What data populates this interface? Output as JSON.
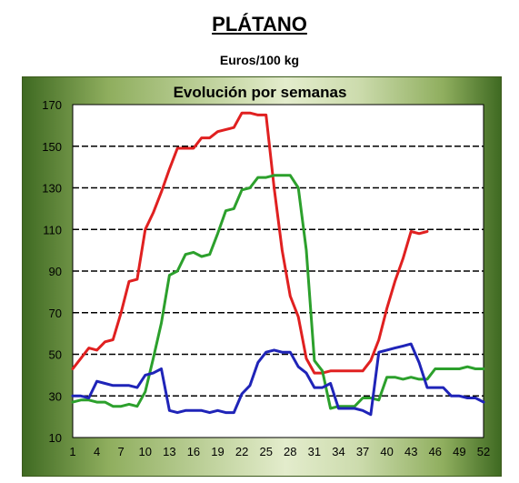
{
  "header": {
    "title": "PLÁTANO",
    "subtitle": "Euros/100 kg"
  },
  "chart_data": {
    "type": "line",
    "title": "Evolución por semanas",
    "xlabel": "",
    "ylabel": "",
    "xlim": [
      1,
      52
    ],
    "ylim": [
      10,
      170
    ],
    "x_ticks": [
      1,
      4,
      7,
      10,
      13,
      16,
      19,
      22,
      25,
      28,
      31,
      34,
      37,
      40,
      43,
      46,
      49,
      52
    ],
    "y_ticks": [
      10,
      30,
      50,
      70,
      90,
      110,
      130,
      150,
      170
    ],
    "grid": "horizontal dashed",
    "legend": "none",
    "series": [
      {
        "color": "#e02020",
        "x": [
          1,
          2,
          3,
          4,
          5,
          6,
          7,
          8,
          9,
          10,
          11,
          12,
          13,
          14,
          15,
          16,
          17,
          18,
          19,
          20,
          21,
          22,
          23,
          24,
          25,
          26,
          27,
          28,
          29,
          30,
          31,
          32,
          33,
          34,
          35,
          36,
          37,
          38,
          39,
          40,
          41,
          42,
          43,
          44,
          45
        ],
        "values": [
          43,
          48,
          53,
          52,
          56,
          57,
          70,
          85,
          86,
          110,
          118,
          128,
          139,
          149,
          149,
          149,
          154,
          154,
          157,
          158,
          159,
          166,
          166,
          165,
          165,
          130,
          100,
          78,
          68,
          48,
          41,
          41,
          42,
          42,
          42,
          42,
          42,
          47,
          57,
          72,
          85,
          96,
          109,
          108,
          109
        ]
      },
      {
        "color": "#2ca02c",
        "x": [
          1,
          2,
          3,
          4,
          5,
          6,
          7,
          8,
          9,
          10,
          11,
          12,
          13,
          14,
          15,
          16,
          17,
          18,
          19,
          20,
          21,
          22,
          23,
          24,
          25,
          26,
          27,
          28,
          29,
          30,
          31,
          32,
          33,
          34,
          35,
          36,
          37,
          38,
          39,
          40,
          41,
          42,
          43,
          44,
          45,
          46,
          47,
          48,
          49,
          50,
          51,
          52
        ],
        "values": [
          27,
          28,
          28,
          27,
          27,
          25,
          25,
          26,
          25,
          32,
          48,
          65,
          88,
          90,
          98,
          99,
          97,
          98,
          108,
          119,
          120,
          129,
          130,
          135,
          135,
          136,
          136,
          136,
          130,
          100,
          47,
          42,
          24,
          25,
          25,
          25,
          29,
          29,
          28,
          39,
          39,
          38,
          39,
          38,
          38,
          43,
          43,
          43,
          43,
          44,
          43,
          43
        ]
      },
      {
        "color": "#1f24b8",
        "x": [
          1,
          2,
          3,
          4,
          5,
          6,
          7,
          8,
          9,
          10,
          11,
          12,
          13,
          14,
          15,
          16,
          17,
          18,
          19,
          20,
          21,
          22,
          23,
          24,
          25,
          26,
          27,
          28,
          29,
          30,
          31,
          32,
          33,
          34,
          35,
          36,
          37,
          38,
          39,
          40,
          41,
          42,
          43,
          44,
          45,
          46,
          47,
          48,
          49,
          50,
          51,
          52
        ],
        "values": [
          30,
          30,
          29,
          37,
          36,
          35,
          35,
          35,
          34,
          40,
          41,
          43,
          23,
          22,
          23,
          23,
          23,
          22,
          23,
          22,
          22,
          31,
          35,
          46,
          51,
          52,
          51,
          51,
          44,
          41,
          34,
          34,
          36,
          24,
          24,
          24,
          23,
          21,
          51,
          52,
          53,
          54,
          55,
          46,
          34,
          34,
          34,
          30,
          30,
          29,
          29,
          27
        ]
      }
    ]
  }
}
